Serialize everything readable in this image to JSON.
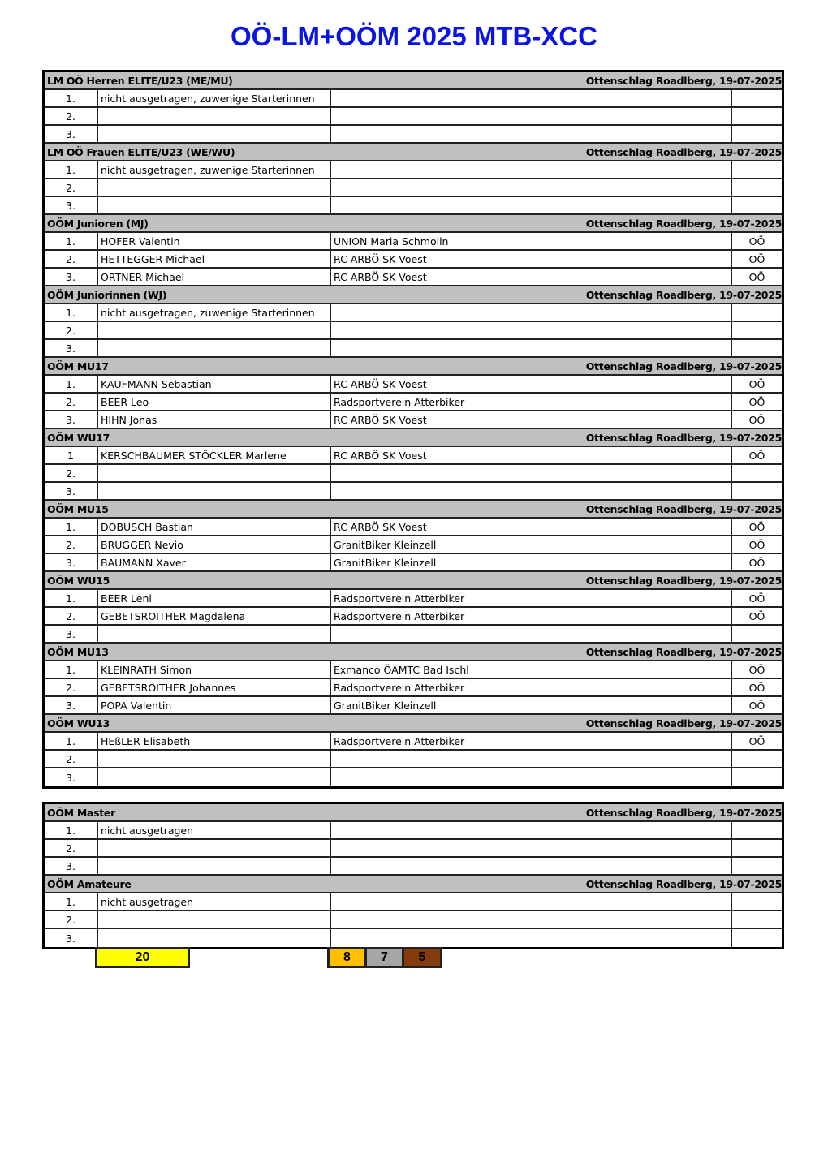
{
  "title": "OÖ-LM+OÖM 2025 MTB-XCC",
  "tables": [
    {
      "sections": [
        {
          "category": "LM OÖ Herren ELITE/U23 (ME/MU)",
          "location": "Ottenschlag Roadlberg, 19-07-2025",
          "rows": [
            {
              "rank": "1.",
              "name": "nicht ausgetragen, zuwenige Starterinnen",
              "club": "",
              "state": ""
            },
            {
              "rank": "2.",
              "name": "",
              "club": "",
              "state": ""
            },
            {
              "rank": "3.",
              "name": "",
              "club": "",
              "state": ""
            }
          ]
        },
        {
          "category": "LM OÖ Frauen ELITE/U23 (WE/WU)",
          "location": "Ottenschlag Roadlberg, 19-07-2025",
          "rows": [
            {
              "rank": "1.",
              "name": "nicht ausgetragen, zuwenige Starterinnen",
              "club": "",
              "state": ""
            },
            {
              "rank": "2.",
              "name": "",
              "club": "",
              "state": ""
            },
            {
              "rank": "3.",
              "name": "",
              "club": "",
              "state": ""
            }
          ]
        },
        {
          "category": "OÖM Junioren (MJ)",
          "location": "Ottenschlag Roadlberg, 19-07-2025",
          "rows": [
            {
              "rank": "1.",
              "name": "HOFER Valentin",
              "club": "UNION Maria Schmolln",
              "state": "OÖ"
            },
            {
              "rank": "2.",
              "name": "HETTEGGER Michael",
              "club": "RC ARBÖ SK Voest",
              "state": "OÖ"
            },
            {
              "rank": "3.",
              "name": "ORTNER Michael",
              "club": "RC ARBÖ SK Voest",
              "state": "OÖ"
            }
          ]
        },
        {
          "category": "OÖM  Juniorinnen (WJ)",
          "location": "Ottenschlag Roadlberg, 19-07-2025",
          "rows": [
            {
              "rank": "1.",
              "name": "nicht ausgetragen, zuwenige Starterinnen",
              "club": "",
              "state": ""
            },
            {
              "rank": "2.",
              "name": "",
              "club": "",
              "state": ""
            },
            {
              "rank": "3.",
              "name": "",
              "club": "",
              "state": ""
            }
          ]
        },
        {
          "category": "OÖM  MU17",
          "location": "Ottenschlag Roadlberg, 19-07-2025",
          "rows": [
            {
              "rank": "1.",
              "name": "KAUFMANN Sebastian",
              "club": "RC ARBÖ SK Voest",
              "state": "OÖ"
            },
            {
              "rank": "2.",
              "name": "BEER Leo",
              "club": "Radsportverein Atterbiker",
              "state": "OÖ"
            },
            {
              "rank": "3.",
              "name": "HIHN Jonas",
              "club": "RC ARBÖ SK Voest",
              "state": "OÖ"
            }
          ]
        },
        {
          "category": "OÖM  WU17",
          "location": "Ottenschlag Roadlberg, 19-07-2025",
          "rows": [
            {
              "rank": "1",
              "name": "KERSCHBAUMER STÖCKLER Marlene",
              "club": "RC ARBÖ SK Voest",
              "state": "OÖ"
            },
            {
              "rank": "2.",
              "name": "",
              "club": "",
              "state": ""
            },
            {
              "rank": "3.",
              "name": "",
              "club": "",
              "state": ""
            }
          ]
        },
        {
          "category": "OÖM  MU15",
          "location": "Ottenschlag Roadlberg, 19-07-2025",
          "rows": [
            {
              "rank": "1.",
              "name": "DOBUSCH Bastian",
              "club": "RC ARBÖ SK Voest",
              "state": "OÖ"
            },
            {
              "rank": "2.",
              "name": "BRUGGER Nevio",
              "club": "GranitBiker Kleinzell",
              "state": "OÖ"
            },
            {
              "rank": "3.",
              "name": "BAUMANN Xaver",
              "club": "GranitBiker Kleinzell",
              "state": "OÖ"
            }
          ]
        },
        {
          "category": "OÖM  WU15",
          "location": "Ottenschlag Roadlberg, 19-07-2025",
          "rows": [
            {
              "rank": "1.",
              "name": "BEER Leni",
              "club": "Radsportverein Atterbiker",
              "state": "OÖ"
            },
            {
              "rank": "2.",
              "name": "GEBETSROITHER Magdalena",
              "club": "Radsportverein Atterbiker",
              "state": "OÖ"
            },
            {
              "rank": "3.",
              "name": "",
              "club": "",
              "state": ""
            }
          ]
        },
        {
          "category": "OÖM  MU13",
          "location": "Ottenschlag Roadlberg, 19-07-2025",
          "rows": [
            {
              "rank": "1.",
              "name": "KLEINRATH Simon",
              "club": "Exmanco ÖAMTC Bad Ischl",
              "state": "OÖ"
            },
            {
              "rank": "2.",
              "name": "GEBETSROITHER Johannes",
              "club": "Radsportverein Atterbiker",
              "state": "OÖ"
            },
            {
              "rank": "3.",
              "name": "POPA Valentin",
              "club": "GranitBiker Kleinzell",
              "state": "OÖ"
            }
          ]
        },
        {
          "category": "OÖM WU13",
          "location": "Ottenschlag Roadlberg, 19-07-2025",
          "rows": [
            {
              "rank": "1.",
              "name": "HEßLER Elisabeth",
              "club": "Radsportverein Atterbiker",
              "state": "OÖ"
            },
            {
              "rank": "2.",
              "name": "",
              "club": "",
              "state": ""
            },
            {
              "rank": "3.",
              "name": "",
              "club": "",
              "state": ""
            }
          ]
        }
      ]
    },
    {
      "sections": [
        {
          "category": "OÖM  Master",
          "location": "Ottenschlag Roadlberg, 19-07-2025",
          "rows": [
            {
              "rank": "1.",
              "name": "nicht ausgetragen",
              "club": "",
              "state": ""
            },
            {
              "rank": "2.",
              "name": "",
              "club": "",
              "state": ""
            },
            {
              "rank": "3.",
              "name": "",
              "club": "",
              "state": ""
            }
          ]
        },
        {
          "category": "OÖM  Amateure",
          "location": "Ottenschlag Roadlberg, 19-07-2025",
          "rows": [
            {
              "rank": "1.",
              "name": "nicht ausgetragen",
              "club": "",
              "state": ""
            },
            {
              "rank": "2.",
              "name": "",
              "club": "",
              "state": ""
            },
            {
              "rank": "3.",
              "name": "",
              "club": "",
              "state": ""
            }
          ]
        }
      ]
    }
  ],
  "summary": {
    "total": {
      "value": "20",
      "color": "#ffff00"
    },
    "medals": [
      {
        "value": "8",
        "color": "#ffc000"
      },
      {
        "value": "7",
        "color": "#a6a6a6"
      },
      {
        "value": "5",
        "color": "#843c0c"
      }
    ]
  }
}
